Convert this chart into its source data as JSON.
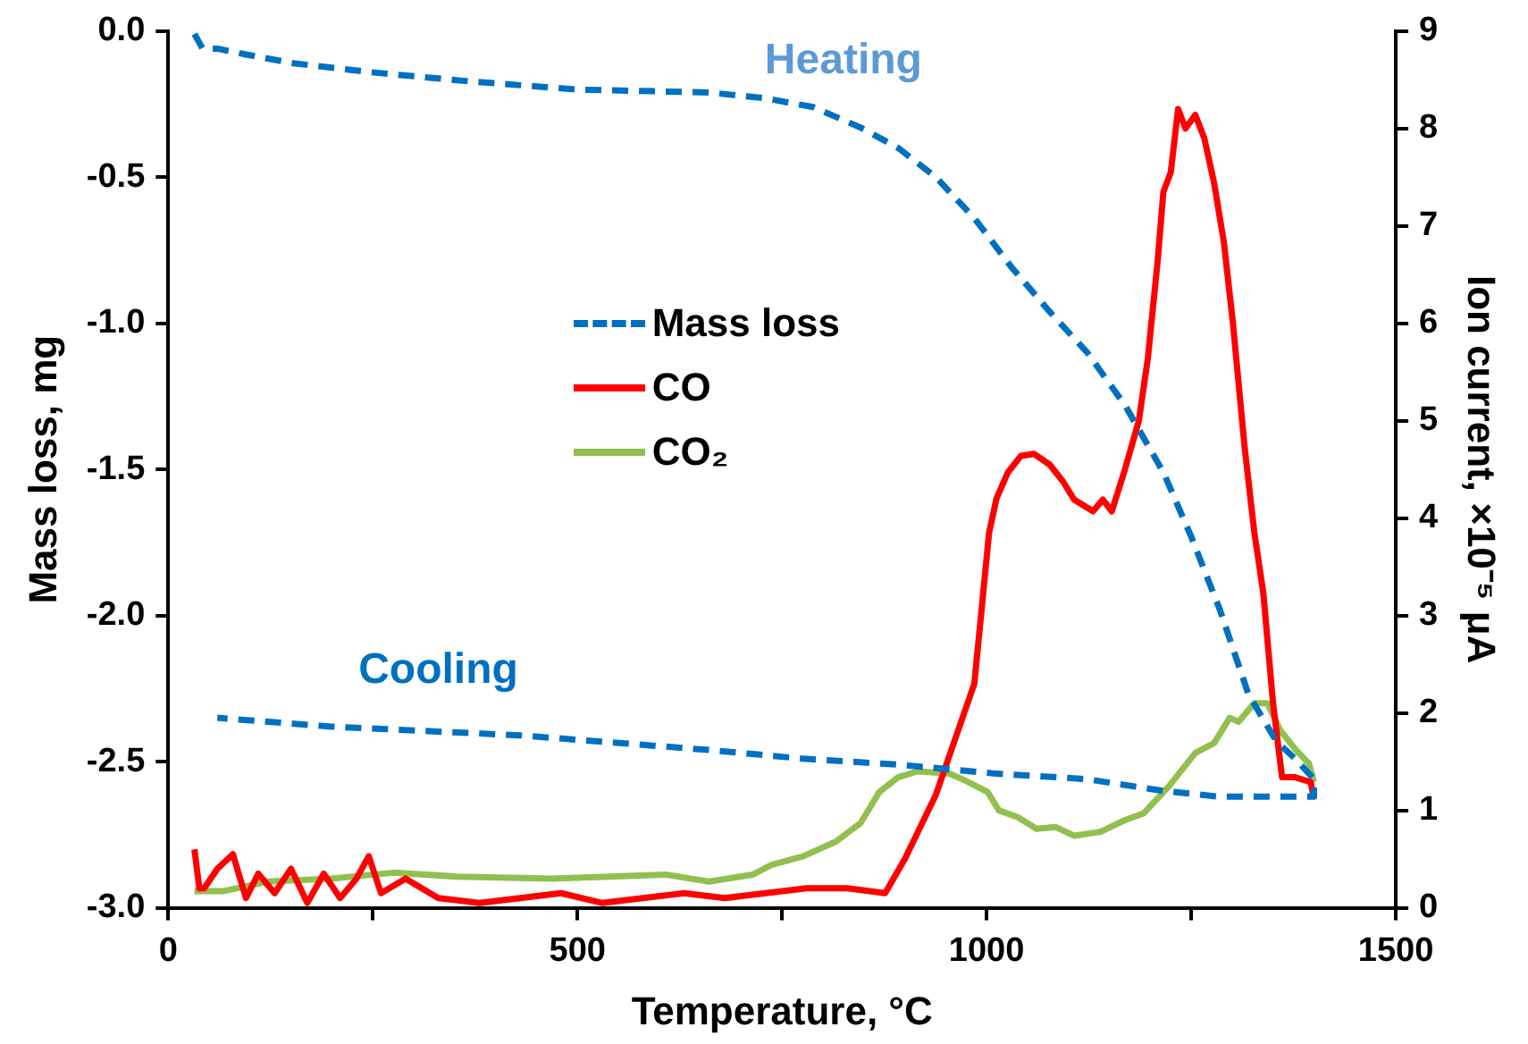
{
  "chart_data": {
    "type": "line",
    "xlabel": "Temperature, °C",
    "ylabel": "Mass loss, mg",
    "y2label": "Ion current, ×10⁻⁵ μA",
    "xlim": [
      0,
      1500
    ],
    "xticks": [
      0,
      {
        "value": 250,
        "label": null
      },
      500,
      {
        "value": 750,
        "label": null
      },
      1000,
      {
        "value": 1250,
        "label": null
      },
      1500
    ],
    "ylim": [
      -3,
      0
    ],
    "yticks": [
      {
        "value": -3,
        "label": "-3.0"
      },
      -2.5,
      {
        "value": -2,
        "label": "-2.0"
      },
      -1.5,
      {
        "value": -1,
        "label": "-1.0"
      },
      -0.5,
      {
        "value": 0,
        "label": "0.0"
      }
    ],
    "y2lim": [
      0,
      9
    ],
    "y2ticks": [
      0,
      1,
      2,
      3,
      4,
      5,
      6,
      7,
      8,
      9
    ],
    "grid": false,
    "legend": "left",
    "marker": "none",
    "annotations": [
      "Heating",
      "Cooling"
    ],
    "series": [
      {
        "name": "Mass loss",
        "color": "#0070c0",
        "line_style": "dashed",
        "x": [
          32,
          42,
          60,
          95,
          153,
          245,
          360,
          500,
          661,
          730,
          788,
          846,
          892,
          938,
          985,
          1031,
          1077,
          1123,
          1169,
          1216,
          1250,
          1285,
          1320,
          1354,
          1377,
          1400,
          1400,
          1354,
          1285,
          1216,
          1123,
          1008,
          892,
          776,
          661,
          430,
          199,
          60
        ],
        "values": [
          -0.01,
          -0.06,
          -0.06,
          -0.08,
          -0.11,
          -0.14,
          -0.17,
          -0.2,
          -0.21,
          -0.23,
          -0.26,
          -0.33,
          -0.4,
          -0.5,
          -0.64,
          -0.81,
          -0.96,
          -1.1,
          -1.28,
          -1.51,
          -1.73,
          -1.98,
          -2.27,
          -2.43,
          -2.49,
          -2.56,
          -2.62,
          -2.62,
          -2.62,
          -2.6,
          -2.56,
          -2.54,
          -2.51,
          -2.49,
          -2.46,
          -2.41,
          -2.38,
          -2.35
        ]
      },
      {
        "name": "CO",
        "color": "#ff0000",
        "axis": "y2",
        "line_style": "solid",
        "x": [
          32,
          38,
          44,
          60,
          79,
          95,
          110,
          130,
          150,
          170,
          190,
          210,
          230,
          245,
          260,
          290,
          330,
          380,
          430,
          480,
          530,
          580,
          630,
          680,
          730,
          780,
          830,
          876,
          900,
          938,
          985,
          1003,
          1012,
          1026,
          1042,
          1058,
          1077,
          1093,
          1107,
          1130,
          1142,
          1153,
          1169,
          1186,
          1197,
          1209,
          1216,
          1225,
          1234,
          1243,
          1255,
          1266,
          1278,
          1290,
          1301,
          1315,
          1327,
          1338,
          1350,
          1361,
          1377,
          1396,
          1400
        ],
        "values": [
          0.6,
          0.2,
          0.2,
          0.4,
          0.55,
          0.1,
          0.35,
          0.15,
          0.4,
          0.05,
          0.35,
          0.1,
          0.3,
          0.53,
          0.15,
          0.3,
          0.1,
          0.05,
          0.1,
          0.15,
          0.05,
          0.1,
          0.15,
          0.1,
          0.15,
          0.2,
          0.2,
          0.15,
          0.5,
          1.16,
          2.3,
          3.85,
          4.2,
          4.47,
          4.64,
          4.66,
          4.55,
          4.38,
          4.19,
          4.07,
          4.19,
          4.07,
          4.5,
          5.0,
          5.64,
          6.64,
          7.35,
          7.55,
          8.2,
          8.0,
          8.14,
          7.9,
          7.44,
          6.83,
          6.0,
          4.75,
          3.86,
          3.24,
          2.1,
          1.34,
          1.34,
          1.29,
          1.12
        ]
      },
      {
        "name": "CO₂",
        "color": "#92c050",
        "axis": "y2",
        "line_style": "solid",
        "x": [
          32,
          67,
          122,
          199,
          275,
          353,
          469,
          608,
          661,
          714,
          737,
          776,
          816,
          846,
          869,
          892,
          915,
          954,
          973,
          1001,
          1015,
          1038,
          1061,
          1084,
          1107,
          1139,
          1169,
          1192,
          1223,
          1255,
          1278,
          1297,
          1308,
          1327,
          1343,
          1359,
          1377,
          1394,
          1400
        ],
        "values": [
          0.17,
          0.17,
          0.27,
          0.3,
          0.36,
          0.32,
          0.3,
          0.34,
          0.27,
          0.34,
          0.44,
          0.53,
          0.68,
          0.87,
          1.19,
          1.34,
          1.4,
          1.38,
          1.31,
          1.19,
          1.0,
          0.93,
          0.81,
          0.83,
          0.74,
          0.78,
          0.9,
          0.97,
          1.25,
          1.59,
          1.69,
          1.95,
          1.91,
          2.1,
          2.1,
          1.82,
          1.63,
          1.48,
          1.29
        ]
      }
    ]
  }
}
